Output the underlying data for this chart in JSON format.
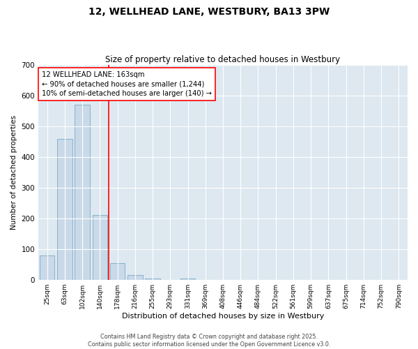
{
  "title": "12, WELLHEAD LANE, WESTBURY, BA13 3PW",
  "subtitle": "Size of property relative to detached houses in Westbury",
  "xlabel": "Distribution of detached houses by size in Westbury",
  "ylabel": "Number of detached properties",
  "categories": [
    "25sqm",
    "63sqm",
    "102sqm",
    "140sqm",
    "178sqm",
    "216sqm",
    "255sqm",
    "293sqm",
    "331sqm",
    "369sqm",
    "408sqm",
    "446sqm",
    "484sqm",
    "522sqm",
    "561sqm",
    "599sqm",
    "637sqm",
    "675sqm",
    "714sqm",
    "752sqm",
    "790sqm"
  ],
  "values": [
    80,
    460,
    570,
    210,
    55,
    15,
    5,
    0,
    5,
    0,
    0,
    0,
    0,
    0,
    0,
    0,
    0,
    0,
    0,
    0,
    0
  ],
  "bar_color": "#c9d9e8",
  "bar_edge_color": "#7aaac8",
  "background_color": "#dde8f0",
  "grid_color": "#ffffff",
  "red_line_index": 3,
  "annotation_line1": "12 WELLHEAD LANE: 163sqm",
  "annotation_line2": "← 90% of detached houses are smaller (1,244)",
  "annotation_line3": "10% of semi-detached houses are larger (140) →",
  "ylim": [
    0,
    700
  ],
  "yticks": [
    0,
    100,
    200,
    300,
    400,
    500,
    600,
    700
  ],
  "footer_line1": "Contains HM Land Registry data © Crown copyright and database right 2025.",
  "footer_line2": "Contains public sector information licensed under the Open Government Licence v3.0."
}
